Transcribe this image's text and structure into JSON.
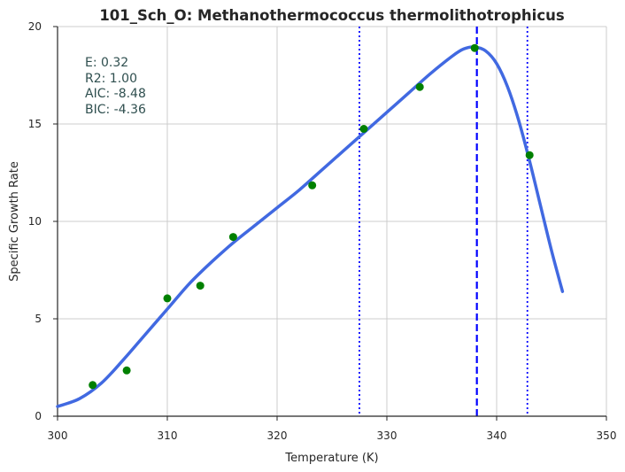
{
  "chart_data": {
    "type": "scatter",
    "title": "101_Sch_O: Methanothermococcus thermolithotrophicus",
    "xlabel": "Temperature (K)",
    "ylabel": "Specific Growth Rate",
    "xlim": [
      300,
      350
    ],
    "ylim": [
      0,
      20
    ],
    "x_ticks": [
      "300",
      "310",
      "320",
      "330",
      "340",
      "350"
    ],
    "y_ticks": [
      "0",
      "5",
      "10",
      "15",
      "20"
    ],
    "grid": true,
    "stats": [
      "E:  0.32",
      "R2:  1.00",
      "AIC: -8.48",
      "BIC: -4.36"
    ],
    "points": {
      "color": "#008000",
      "x": [
        303.2,
        306.3,
        310.0,
        313.0,
        316.0,
        323.2,
        327.9,
        333.0,
        338.0,
        343.0
      ],
      "y": [
        1.6,
        2.35,
        6.05,
        6.7,
        9.2,
        11.85,
        14.75,
        16.9,
        18.9,
        13.4
      ]
    },
    "fit": {
      "color": "#4169e1",
      "x": [
        300,
        302,
        304,
        306,
        308,
        310,
        312,
        314,
        316,
        318,
        320,
        322,
        324,
        326,
        328,
        330,
        332,
        334,
        336,
        337,
        338,
        339,
        340,
        341,
        342,
        343,
        344,
        345,
        346
      ],
      "y": [
        0.5,
        0.9,
        1.7,
        2.9,
        4.2,
        5.5,
        6.8,
        7.9,
        8.9,
        9.8,
        10.7,
        11.6,
        12.6,
        13.6,
        14.6,
        15.6,
        16.6,
        17.6,
        18.5,
        18.85,
        18.95,
        18.75,
        18.1,
        16.9,
        15.2,
        13.1,
        10.8,
        8.5,
        6.4
      ]
    },
    "vlines": [
      {
        "x": 327.5,
        "style": "dotted",
        "color": "#0000ff"
      },
      {
        "x": 338.2,
        "style": "dashed",
        "color": "#0000ff"
      },
      {
        "x": 342.8,
        "style": "dotted",
        "color": "#0000ff"
      }
    ]
  }
}
